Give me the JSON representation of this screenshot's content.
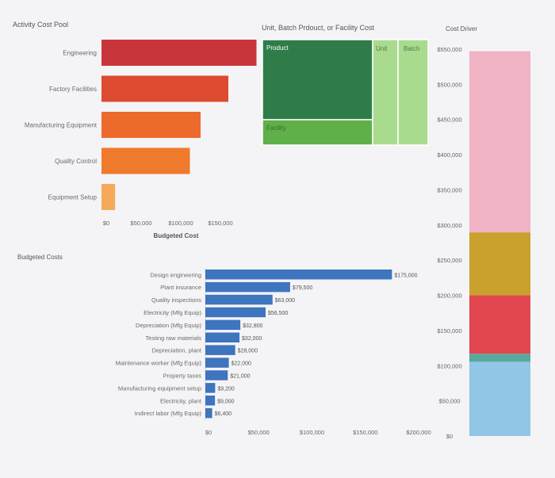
{
  "chart_data": [
    {
      "id": "activity_pool",
      "type": "bar",
      "orientation": "horizontal",
      "title": "Activity Cost Pool",
      "xlabel": "Budgeted Cost",
      "categories": [
        "Engineering",
        "Factory Facilities",
        "Manufacturing Equipment",
        "Quality Control",
        "Equipment Setup"
      ],
      "values": [
        195500,
        160000,
        125000,
        111500,
        17200
      ],
      "colors": [
        "#c8363c",
        "#dc4b2f",
        "#ec6a2c",
        "#f07a2c",
        "#f5aa5a"
      ],
      "xlim": [
        0,
        200000
      ],
      "ticks": [
        {
          "value": 0,
          "label": "$0"
        },
        {
          "value": 50000,
          "label": "$50,000"
        },
        {
          "value": 100000,
          "label": "$100,000"
        },
        {
          "value": 150000,
          "label": "$150,000"
        }
      ]
    },
    {
      "id": "treemap",
      "type": "treemap",
      "title": "Unit, Batch Prdouct, or Facility Cost",
      "nodes": [
        {
          "label": "Product",
          "value": 175000,
          "color": "#2e7d48"
        },
        {
          "label": "Facility",
          "value": 56500,
          "color": "#5fb048"
        },
        {
          "label": "Unit",
          "value": 52500,
          "color": "#a9db8e"
        },
        {
          "label": "Batch",
          "value": 63000,
          "color": "#a9db8e"
        }
      ]
    },
    {
      "id": "budgeted_costs",
      "type": "bar",
      "orientation": "horizontal",
      "title": "Budgeted Costs",
      "categories": [
        "Design engineering",
        "Plant insurance",
        "Quality inspections",
        "Electricity (Mfg Equip)",
        "Depreciation (Mfg Equip)",
        "Testing raw materials",
        "Depreciation, plant",
        "Maintenance worker (Mfg Equip)",
        "Property taxes",
        "Manufacturing equipment setup",
        "Electricity, plant",
        "Indirect labor (Mfg Equip)"
      ],
      "values": [
        175000,
        79500,
        63000,
        56500,
        32800,
        32000,
        28000,
        22000,
        21000,
        9200,
        9000,
        6400
      ],
      "value_labels": [
        "$175,000",
        "$79,500",
        "$63,000",
        "$56,500",
        "$32,800",
        "$32,000",
        "$28,000",
        "$22,000",
        "$21,000",
        "$9,200",
        "$9,000",
        "$6,400"
      ],
      "color": "#3f74bf",
      "xlim": [
        0,
        210000
      ],
      "ticks": [
        {
          "value": 0,
          "label": "$0"
        },
        {
          "value": 50000,
          "label": "$50,000"
        },
        {
          "value": 100000,
          "label": "$100,000"
        },
        {
          "value": 150000,
          "label": "$150,000"
        },
        {
          "value": 200000,
          "label": "$200,000"
        }
      ]
    },
    {
      "id": "cost_driver",
      "type": "bar",
      "orientation": "vertical-stacked",
      "title": "Cost Driver",
      "ylim": [
        0,
        575000
      ],
      "segments": [
        {
          "value": 105500,
          "color": "#92c6e6"
        },
        {
          "value": 11500,
          "color": "#5aa79c"
        },
        {
          "value": 83000,
          "color": "#e2474f"
        },
        {
          "value": 89500,
          "color": "#c9a12c"
        },
        {
          "value": 257500,
          "color": "#f0b3c4"
        }
      ],
      "ticks": [
        {
          "value": 0,
          "label": "$0"
        },
        {
          "value": 50000,
          "label": "$50,000"
        },
        {
          "value": 100000,
          "label": "$100,000"
        },
        {
          "value": 150000,
          "label": "$150,000"
        },
        {
          "value": 200000,
          "label": "$200,000"
        },
        {
          "value": 250000,
          "label": "$250,000"
        },
        {
          "value": 300000,
          "label": "$300,000"
        },
        {
          "value": 350000,
          "label": "$350,000"
        },
        {
          "value": 400000,
          "label": "$400,000"
        },
        {
          "value": 450000,
          "label": "$450,000"
        },
        {
          "value": 500000,
          "label": "$500,000"
        },
        {
          "value": 550000,
          "label": "$550,000"
        }
      ]
    }
  ]
}
